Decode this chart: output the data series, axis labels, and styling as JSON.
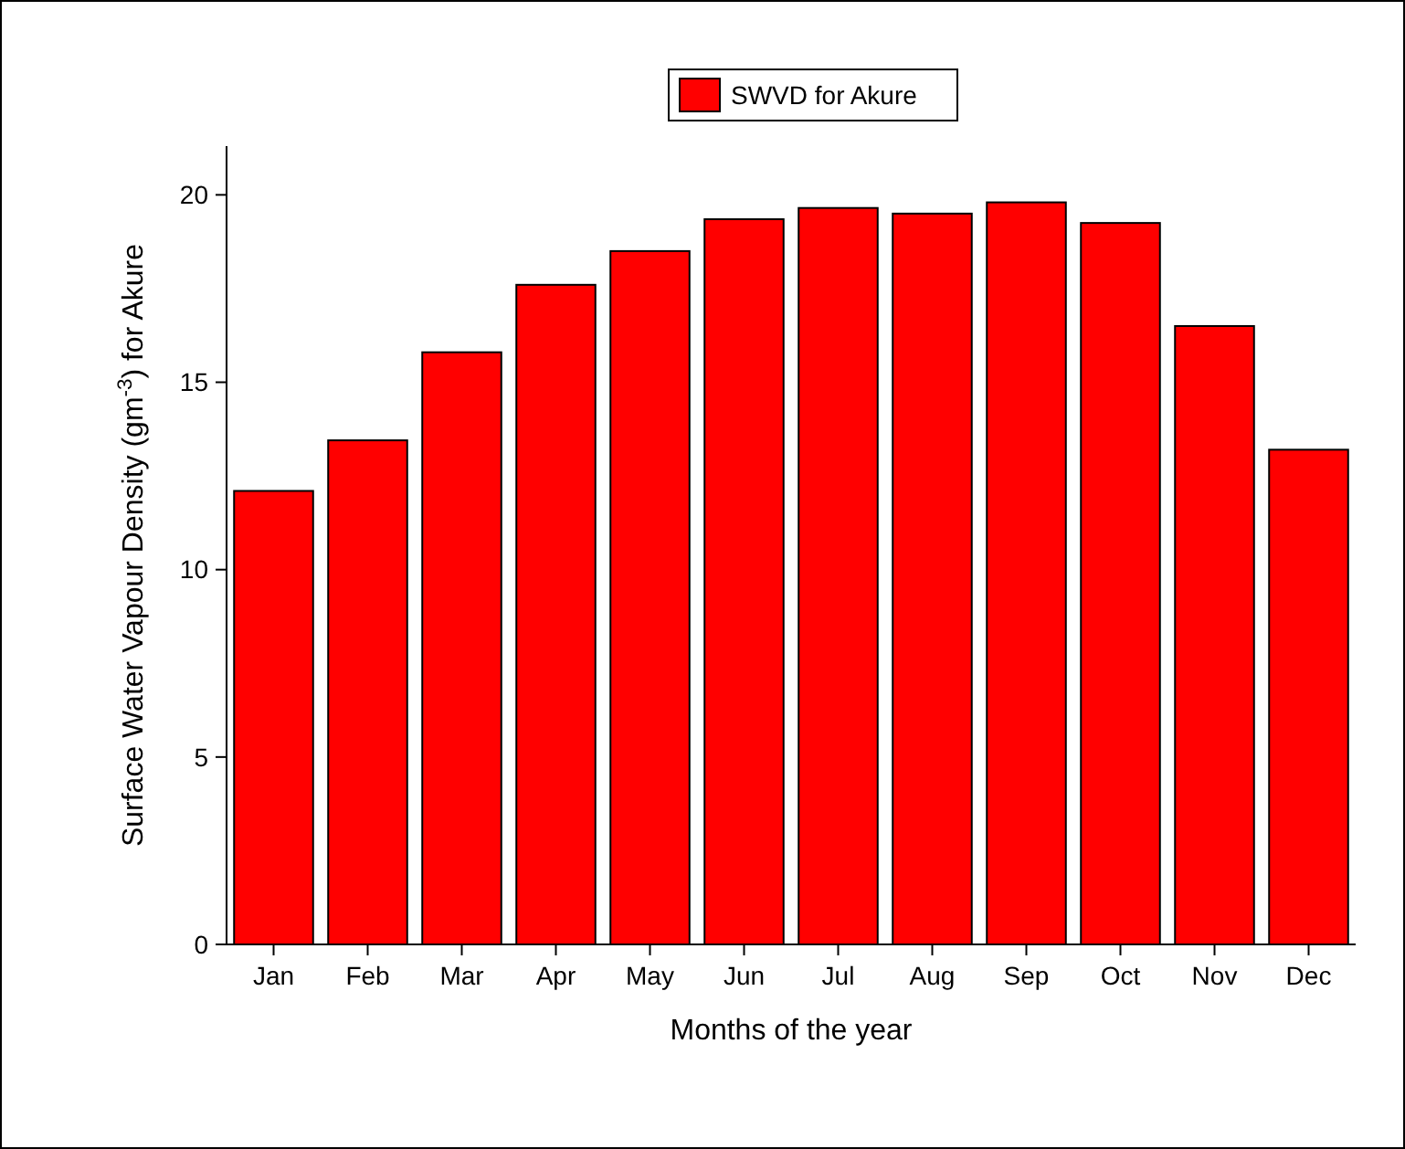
{
  "chart_data": {
    "type": "bar",
    "xlabel": "Months of the year",
    "ylabel": "Surface Water Vapour Density (gm$^{-3}$) for Akure",
    "categories": [
      "Jan",
      "Feb",
      "Mar",
      "Apr",
      "May",
      "Jun",
      "Jul",
      "Aug",
      "Sep",
      "Oct",
      "Nov",
      "Dec"
    ],
    "series": [
      {
        "name": "SWVD for Akure",
        "color": "#ff0000",
        "values": [
          12.1,
          13.45,
          15.8,
          17.6,
          18.5,
          19.35,
          19.65,
          19.5,
          19.8,
          19.25,
          16.5,
          13.2
        ]
      }
    ],
    "ylim": [
      0,
      21.3
    ],
    "yticks": [
      0,
      5,
      10,
      15,
      20
    ],
    "legend": "top",
    "grid": false
  }
}
